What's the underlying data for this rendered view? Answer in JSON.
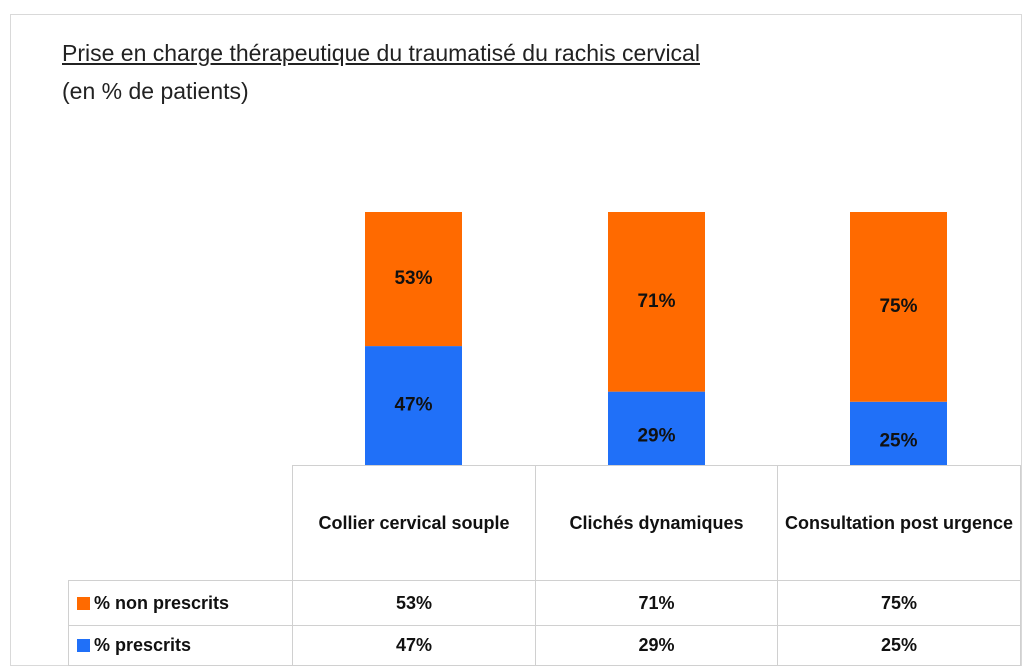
{
  "chart_data": {
    "type": "stacked_bar",
    "title": "Prise en charge thérapeutique du traumatisé du rachis cervical",
    "subtitle": "(en % de patients)",
    "categories": [
      "Collier cervical souple",
      "Clichés dynamiques",
      "Consultation post urgence"
    ],
    "series": [
      {
        "name": "% non prescrits",
        "color": "#ff6a00",
        "values": [
          53,
          71,
          75
        ],
        "value_labels": [
          "53%",
          "71%",
          "75%"
        ]
      },
      {
        "name": "% prescrits",
        "color": "#2070f8",
        "values": [
          47,
          29,
          25
        ],
        "value_labels": [
          "47%",
          "29%",
          "25%"
        ]
      }
    ]
  }
}
